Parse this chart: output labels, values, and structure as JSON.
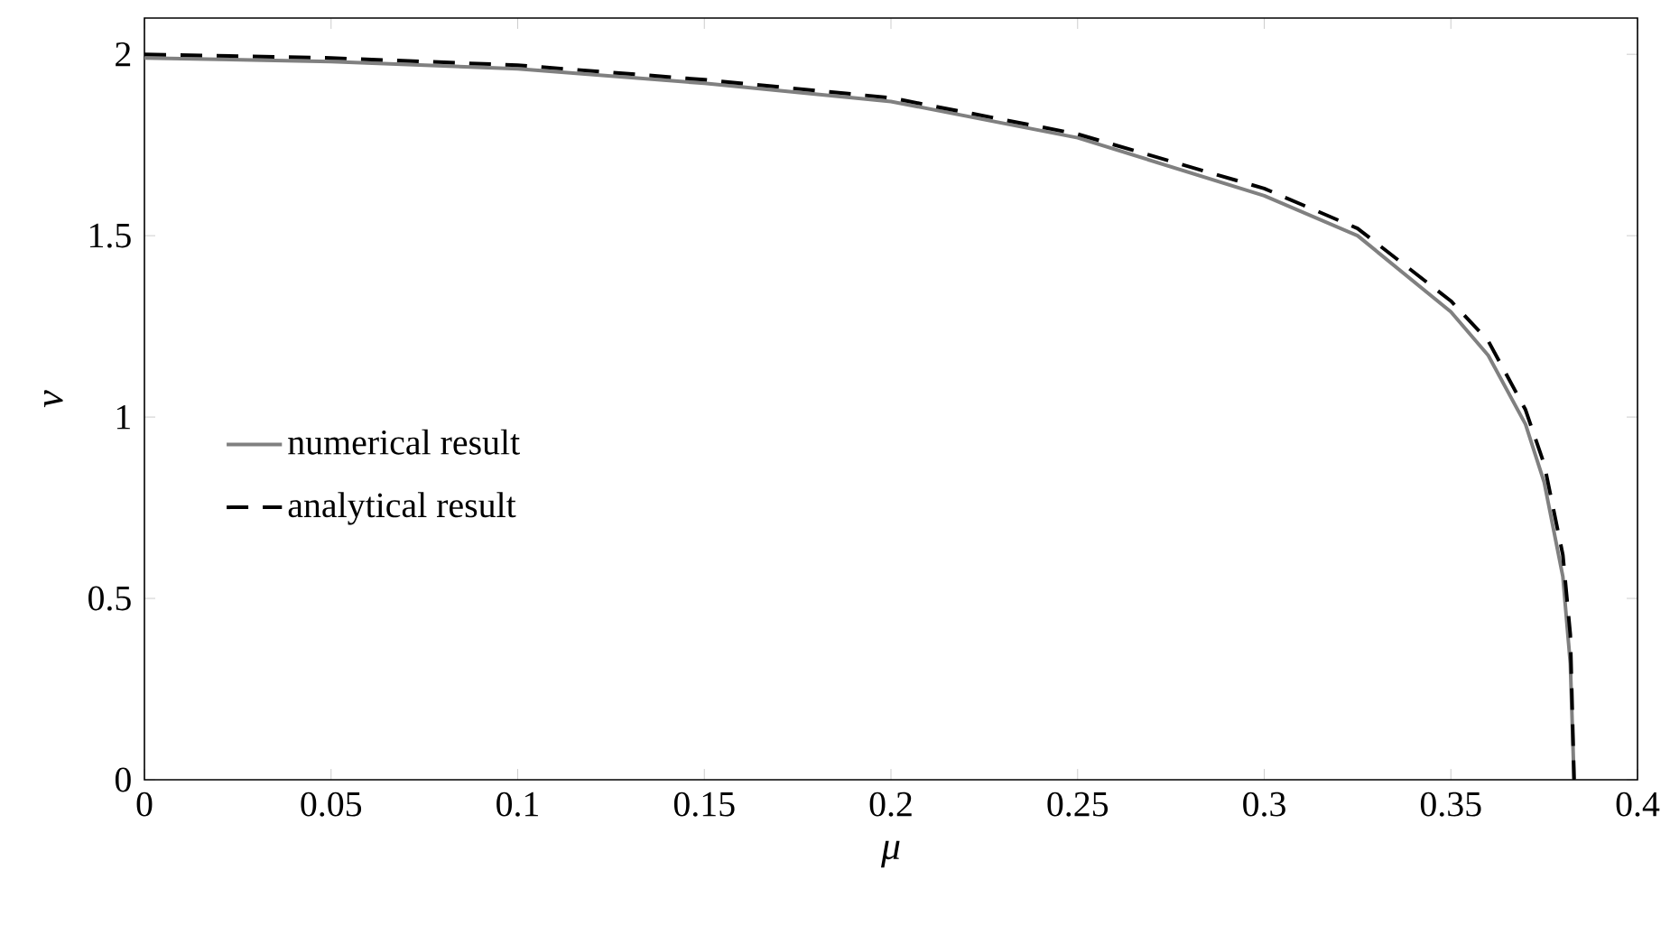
{
  "chart_data": {
    "type": "line",
    "xlabel": "*μ*",
    "ylabel": "*v*",
    "xlim": [
      0,
      0.4
    ],
    "ylim": [
      0,
      2.1
    ],
    "xticks": [
      0,
      0.05,
      0.1,
      0.15,
      0.2,
      0.25,
      0.3,
      0.35,
      0.4
    ],
    "yticks": [
      0,
      0.5,
      1,
      1.5,
      2
    ],
    "legend": "left",
    "grid": false,
    "marker": "none",
    "series": [
      {
        "name": "numerical result",
        "color": "#808080",
        "line_style": "solid",
        "x": [
          0,
          0.05,
          0.1,
          0.15,
          0.2,
          0.25,
          0.3,
          0.325,
          0.35,
          0.36,
          0.37,
          0.375,
          0.38,
          0.382,
          0.383
        ],
        "values": [
          1.99,
          1.98,
          1.96,
          1.92,
          1.87,
          1.77,
          1.61,
          1.5,
          1.29,
          1.17,
          0.98,
          0.82,
          0.56,
          0.32,
          0
        ]
      },
      {
        "name": "analytical result",
        "color": "#000000",
        "line_style": "dashed",
        "x": [
          0,
          0.05,
          0.1,
          0.15,
          0.2,
          0.25,
          0.3,
          0.325,
          0.35,
          0.36,
          0.37,
          0.375,
          0.38,
          0.382,
          0.383
        ],
        "values": [
          2.0,
          1.99,
          1.97,
          1.93,
          1.88,
          1.78,
          1.63,
          1.52,
          1.32,
          1.21,
          1.02,
          0.87,
          0.62,
          0.4,
          0
        ]
      }
    ]
  }
}
